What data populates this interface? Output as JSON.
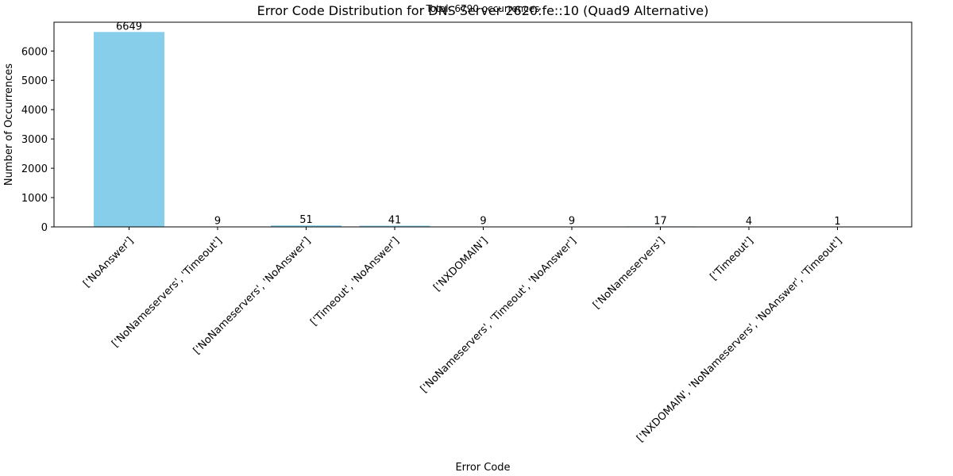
{
  "chart_data": {
    "type": "bar",
    "title": "Error Code Distribution for DNS Server 2620:fe::10 (Quad9 Alternative)",
    "annotation": "Total: 6790 occurrences",
    "xlabel": "Error Code",
    "ylabel": "Number of Occurrences",
    "categories": [
      "['NoAnswer']",
      "['NoNameservers', 'Timeout']",
      "['NoNameservers', 'NoAnswer']",
      "['Timeout', 'NoAnswer']",
      "['NXDOMAIN']",
      "['NoNameservers', 'Timeout', 'NoAnswer']",
      "['NoNameservers']",
      "['Timeout']",
      "['NXDOMAIN', 'NoNameservers', 'NoAnswer', 'Timeout']"
    ],
    "values": [
      6649,
      9,
      51,
      41,
      9,
      9,
      17,
      4,
      1
    ],
    "data_labels": [
      "6649",
      "9",
      "51",
      "41",
      "9",
      "9",
      "17",
      "4",
      "1"
    ],
    "ylim": [
      0,
      6982
    ],
    "yticks": [
      0,
      1000,
      2000,
      3000,
      4000,
      5000,
      6000
    ],
    "ytick_labels": [
      "0",
      "1000",
      "2000",
      "3000",
      "4000",
      "5000",
      "6000"
    ],
    "bar_color": "#87ceeb",
    "grid": false,
    "legend": "none"
  }
}
